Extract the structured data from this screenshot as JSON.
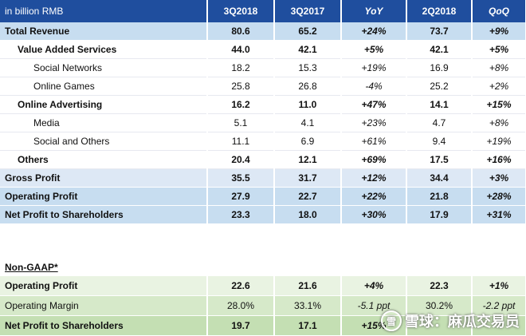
{
  "header": {
    "unit_label": "in billion RMB",
    "columns": [
      "3Q2018",
      "3Q2017",
      "YoY",
      "2Q2018",
      "QoQ"
    ]
  },
  "main_rows": [
    {
      "label": "Total Revenue",
      "values": [
        "80.6",
        "65.2",
        "+24%",
        "73.7",
        "+9%"
      ]
    },
    {
      "label": "Value Added Services",
      "values": [
        "44.0",
        "42.1",
        "+5%",
        "42.1",
        "+5%"
      ]
    },
    {
      "label": "Social Networks",
      "values": [
        "18.2",
        "15.3",
        "+19%",
        "16.9",
        "+8%"
      ]
    },
    {
      "label": "Online Games",
      "values": [
        "25.8",
        "26.8",
        "-4%",
        "25.2",
        "+2%"
      ]
    },
    {
      "label": "Online Advertising",
      "values": [
        "16.2",
        "11.0",
        "+47%",
        "14.1",
        "+15%"
      ]
    },
    {
      "label": "Media",
      "values": [
        "5.1",
        "4.1",
        "+23%",
        "4.7",
        "+8%"
      ]
    },
    {
      "label": "Social and Others",
      "values": [
        "11.1",
        "6.9",
        "+61%",
        "9.4",
        "+19%"
      ]
    },
    {
      "label": "Others",
      "values": [
        "20.4",
        "12.1",
        "+69%",
        "17.5",
        "+16%"
      ]
    },
    {
      "label": "Gross Profit",
      "values": [
        "35.5",
        "31.7",
        "+12%",
        "34.4",
        "+3%"
      ]
    },
    {
      "label": "Operating Profit",
      "values": [
        "27.9",
        "22.7",
        "+22%",
        "21.8",
        "+28%"
      ]
    },
    {
      "label": "Net Profit to Shareholders",
      "values": [
        "23.3",
        "18.0",
        "+30%",
        "17.9",
        "+31%"
      ]
    }
  ],
  "non_gaap": {
    "title": "Non-GAAP*",
    "rows": [
      {
        "label": "Operating Profit",
        "values": [
          "22.6",
          "21.6",
          "+4%",
          "22.3",
          "+1%"
        ]
      },
      {
        "label": "Operating Margin",
        "values": [
          "28.0%",
          "33.1%",
          "-5.1 ppt",
          "30.2%",
          "-2.2 ppt"
        ]
      },
      {
        "label": "Net Profit to Shareholders",
        "values": [
          "19.7",
          "17.1",
          "+15%",
          "",
          ""
        ]
      }
    ]
  },
  "watermark": {
    "logo": "雪",
    "text": "雪球：麻瓜交易员"
  }
}
